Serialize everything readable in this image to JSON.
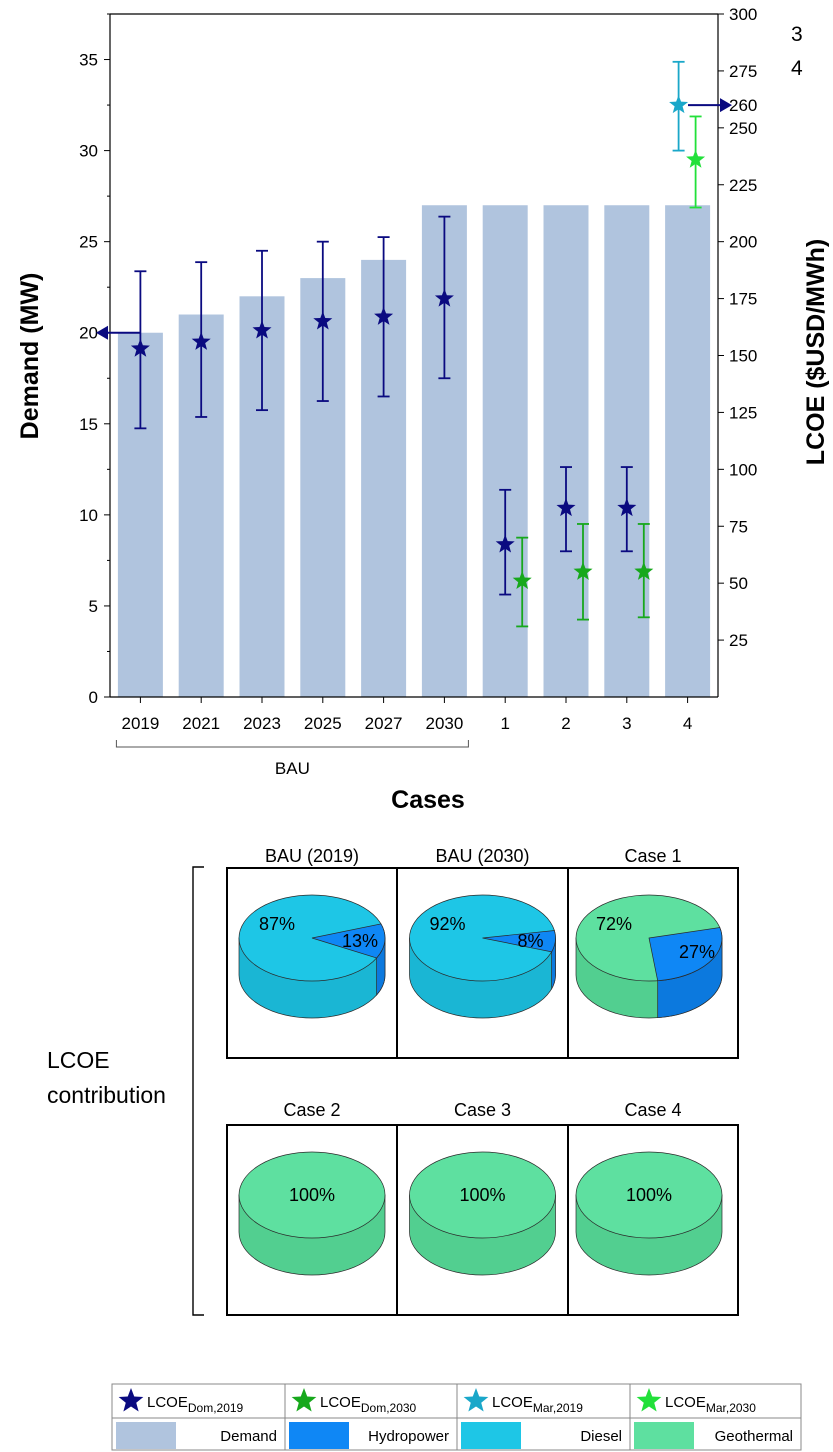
{
  "chart_data": [
    {
      "type": "bar",
      "categories": [
        "2019",
        "2021",
        "2023",
        "2025",
        "2027",
        "2030",
        "1",
        "2",
        "3",
        "4"
      ],
      "group_label": "BAU",
      "xlabel": "Cases",
      "ylabel": "Demand (MW)",
      "ylabel_right": "LCOE ($USD/MWh)",
      "ylim": [
        0,
        37.5
      ],
      "ylim_right": [
        0,
        300
      ],
      "yticks": [
        0,
        5,
        10,
        15,
        20,
        25,
        30,
        35
      ],
      "yticks_right": [
        25,
        50,
        75,
        100,
        125,
        150,
        175,
        200,
        225,
        250,
        275,
        300
      ],
      "extra_right_tick": 260,
      "corner_labels": [
        "3",
        "4"
      ],
      "series": [
        {
          "name": "Demand",
          "axis": "left",
          "kind": "bar",
          "color": "#b0c4de",
          "values": [
            20,
            21,
            22,
            23,
            24,
            27,
            27,
            27,
            27,
            27
          ]
        },
        {
          "name": "LCOE_Dom,2019",
          "axis": "right",
          "kind": "star",
          "color": "#0a0a80",
          "points": [
            {
              "x": "2019",
              "y": 153,
              "low": 118,
              "high": 187
            },
            {
              "x": "2021",
              "y": 156,
              "low": 123,
              "high": 191
            },
            {
              "x": "2023",
              "y": 161,
              "low": 126,
              "high": 196
            },
            {
              "x": "2025",
              "y": 165,
              "low": 130,
              "high": 200
            },
            {
              "x": "2027",
              "y": 167,
              "low": 132,
              "high": 202
            },
            {
              "x": "2030",
              "y": 175,
              "low": 140,
              "high": 211
            },
            {
              "x": "1",
              "y": 67,
              "low": 45,
              "high": 91
            },
            {
              "x": "2",
              "y": 83,
              "low": 64,
              "high": 101
            },
            {
              "x": "3",
              "y": 83,
              "low": 64,
              "high": 101
            }
          ]
        },
        {
          "name": "LCOE_Dom,2030",
          "axis": "right",
          "kind": "star",
          "color": "#17a81c",
          "points": [
            {
              "x": "1",
              "y": 51,
              "low": 31,
              "high": 70
            },
            {
              "x": "2",
              "y": 55,
              "low": 34,
              "high": 76
            },
            {
              "x": "3",
              "y": 55,
              "low": 35,
              "high": 76
            }
          ]
        },
        {
          "name": "LCOE_Mar,2019",
          "axis": "right",
          "kind": "star",
          "color": "#1aa7c9",
          "points": [
            {
              "x": "4",
              "y": 260,
              "low": 240,
              "high": 279
            }
          ]
        },
        {
          "name": "LCOE_Mar,2030",
          "axis": "right",
          "kind": "star",
          "color": "#22e03a",
          "points": [
            {
              "x": "4",
              "y": 236,
              "low": 215,
              "high": 255
            }
          ]
        }
      ],
      "axis_arrows": [
        {
          "axis": "left",
          "value": 20
        },
        {
          "axis": "right",
          "value": 260
        }
      ]
    },
    {
      "type": "pie",
      "group_label": "LCOE contribution",
      "panels": [
        {
          "title": "BAU (2019)",
          "slices": [
            {
              "label": "Diesel",
              "value": 87,
              "text": "87%"
            },
            {
              "label": "Hydropower",
              "value": 13,
              "text": "13%"
            }
          ]
        },
        {
          "title": "BAU (2030)",
          "slices": [
            {
              "label": "Diesel",
              "value": 92,
              "text": "92%"
            },
            {
              "label": "Hydropower",
              "value": 8,
              "text": "8%"
            }
          ]
        },
        {
          "title": "Case 1",
          "slices": [
            {
              "label": "Geothermal",
              "value": 72,
              "text": "72%"
            },
            {
              "label": "Hydropower",
              "value": 27,
              "text": "27%"
            }
          ]
        },
        {
          "title": "Case 2",
          "slices": [
            {
              "label": "Geothermal",
              "value": 100,
              "text": "100%"
            }
          ]
        },
        {
          "title": "Case 3",
          "slices": [
            {
              "label": "Geothermal",
              "value": 100,
              "text": "100%"
            }
          ]
        },
        {
          "title": "Case 4",
          "slices": [
            {
              "label": "Geothermal",
              "value": 100,
              "text": "100%"
            }
          ]
        }
      ]
    }
  ],
  "legend": {
    "items": [
      {
        "kind": "star",
        "base": "LCOE",
        "sub": "Dom,2019",
        "color": "#0a0a80"
      },
      {
        "kind": "star",
        "base": "LCOE",
        "sub": "Dom,2030",
        "color": "#17a81c"
      },
      {
        "kind": "star",
        "base": "LCOE",
        "sub": "Mar,2019",
        "color": "#1aa7c9"
      },
      {
        "kind": "star",
        "base": "LCOE",
        "sub": "Mar,2030",
        "color": "#22e03a"
      },
      {
        "kind": "swatch",
        "label": "Demand",
        "color": "#b0c4de"
      },
      {
        "kind": "swatch",
        "label": "Hydropower",
        "color": "#0f87f5"
      },
      {
        "kind": "swatch",
        "label": "Diesel",
        "color": "#1ec6e6"
      },
      {
        "kind": "swatch",
        "label": "Geothermal",
        "color": "#5ee0a0"
      }
    ]
  }
}
